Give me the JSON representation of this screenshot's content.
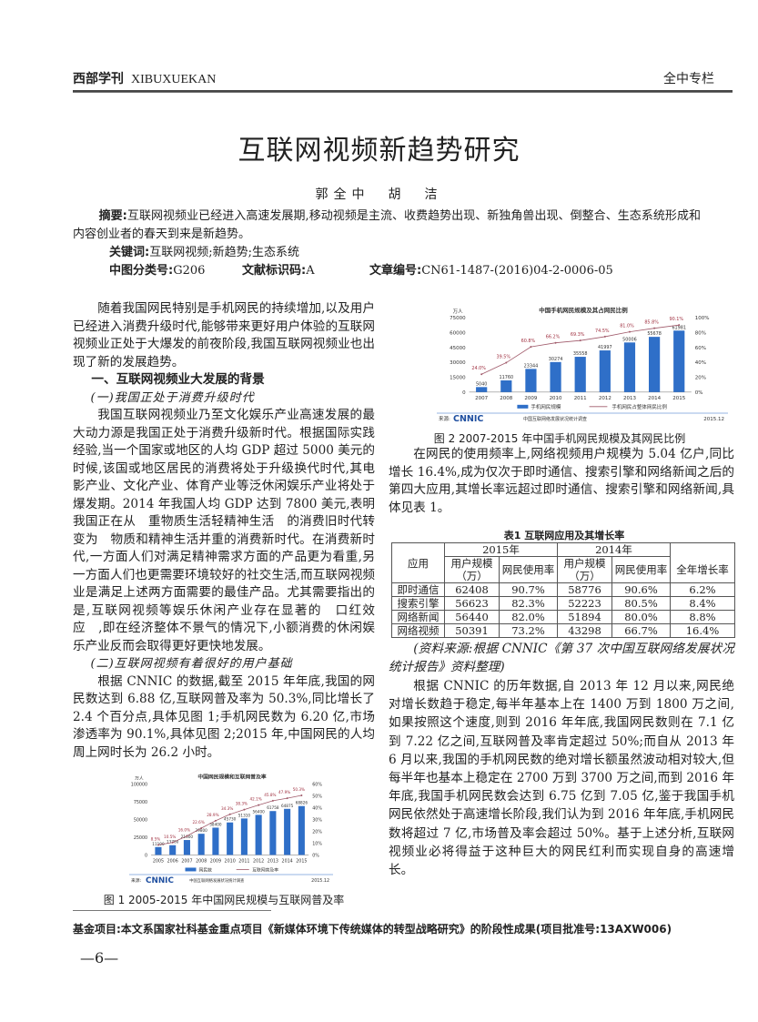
{
  "header": {
    "journal": "西部学刊",
    "journal_en": "XIBUXUEKAN",
    "column": "全中专栏"
  },
  "title": "互联网视频新趋势研究",
  "authors": "郭全中　胡　洁",
  "abstract": {
    "label": "摘要:",
    "text": "互联网视频业已经进入高速发展期,移动视频是主流、收费趋势出现、新独角兽出现、倒整合、生态系统形成和内容创业者的春天到来是新趋势。"
  },
  "keywords": {
    "label": "关键词:",
    "text": "互联网视频;新趋势;生态系统"
  },
  "classification": {
    "label": "中图分类号:",
    "value": "G206",
    "doc_label": "文献标识码:",
    "doc_value": "A",
    "article_label": "文章编号:",
    "article_value": "CN61-1487-(2016)04-2-0006-05"
  },
  "left_column": {
    "p1": "随着我国网民特别是手机网民的持续增加,以及用户已经进入消费升级时代,能够带来更好用户体验的互联网视频业正处于大爆发的前夜阶段,我国互联网视频业也出现了新的发展趋势。",
    "h1": "一、互联网视频业大发展的背景",
    "h1_1": "(一)我国正处于消费升级时代",
    "p2": "我国互联网视频业乃至文化娱乐产业高速发展的最大动力源是我国正处于消费升级新时代。根据国际实践经验,当一个国家或地区的人均 GDP 超过 5000 美元的时候,该国或地区居民的消费将处于升级换代时代,其电影产业、文化产业、体育产业等泛休闲娱乐产业将处于爆发期。2014 年我国人均 GDP 达到 7800 美元,表明我国正在从　重物质生活轻精神生活　的消费旧时代转变为　物质和精神生活并重的消费新时代。在消费新时代,一方面人们对满足精神需求方面的产品更为看重,另一方面人们也更需要环境较好的社交生活,而互联网视频业是满足上述两方面需要的最佳产品。尤其需要指出的是,互联网视频等娱乐休闲产业存在显著的　口红效应　,即在经济整体不景气的情况下,小额消费的休闲娱乐产业反而会取得更好更快地发展。",
    "h1_2": "(二)互联网视频有着很好的用户基础",
    "p3": "根据 CNNIC 的数据,截至 2015 年年底,我国的网民数达到 6.88 亿,互联网普及率为 50.3%,同比增长了 2.4 个百分点,具体见图 1;手机网民数为 6.20 亿,市场渗透率为 90.1%,具体见图 2;2015 年,中国网民的人均周上网时长为 26.2 小时。",
    "fig1_caption": "图 1  2005-2015 年中国网民规模与互联网普及率"
  },
  "right_column": {
    "fig2_caption": "图 2  2007-2015 年中国手机网民规模及其网民比例",
    "p1": "在网民的使用频率上,网络视频用户规模为 5.04 亿户,同比增长 16.4%,成为仅次于即时通信、搜索引擎和网络新闻之后的第四大应用,其增长率远超过即时通信、搜索引擎和网络新闻,具体见表 1。",
    "table": {
      "title": "表1  互联网应用及其增长率",
      "year_headers": [
        "2015年",
        "2014年"
      ],
      "col_headers": [
        "应用",
        "用户规模（万）",
        "网民使用率",
        "用户规模（万）",
        "网民使用率",
        "全年增长率"
      ],
      "rows": [
        [
          "即时通信",
          "62408",
          "90.7%",
          "58776",
          "90.6%",
          "6.2%"
        ],
        [
          "搜索引擎",
          "56623",
          "82.3%",
          "52223",
          "80.5%",
          "8.4%"
        ],
        [
          "网络新闻",
          "56440",
          "82.0%",
          "51894",
          "80.0%",
          "8.8%"
        ],
        [
          "网络视频",
          "50391",
          "73.2%",
          "43298",
          "66.7%",
          "16.4%"
        ]
      ],
      "source": "(资料来源:根据 CNNIC《第 37 次中国互联网络发展状况统计报告》资料整理)"
    },
    "p2": "根据 CNNIC 的历年数据,自 2013 年 12 月以来,网民绝对增长数趋于稳定,每半年基本上在 1400 万到 1800 万之间,如果按照这个速度,则到 2016 年年底,我国网民数则在 7.1 亿到 7.22 亿之间,互联网普及率肯定超过 50%;而自从 2013 年 6 月以来,我国的手机网民数的绝对增长额虽然波动相对较大,但每半年也基本上稳定在 2700 万到 3700 万之间,而到 2016 年年底,我国手机网民数会达到 6.75 亿到 7.05 亿,鉴于我国手机网民依然处于高速增长阶段,我们认为到 2016 年年底,手机网民数将超过 7 亿,市场普及率会超过 50%。基于上述分析,互联网视频业必将得益于这种巨大的网民红利而实现自身的高速增长。"
  },
  "footer": {
    "fund": "基金项目:本文系国家社科基金重点项目《新媒体环境下传统媒体的转型战略研究》的阶段性成果(项目批准号:13AXW006)",
    "page": "—6—"
  },
  "chart_data": [
    {
      "type": "bar+line",
      "title": "中国网民规模和互联网普及率",
      "ylabel": "万人",
      "categories": [
        "2005",
        "2006",
        "2007",
        "2008",
        "2009",
        "2010",
        "2011",
        "2012",
        "2013",
        "2014",
        "2015"
      ],
      "series": [
        {
          "name": "网民数",
          "type": "bar",
          "axis": "left",
          "values": [
            11100,
            13700,
            21000,
            29800,
            38400,
            45730,
            51310,
            56400,
            61758,
            64875,
            68826
          ]
        },
        {
          "name": "互联网普及率",
          "type": "line",
          "axis": "right",
          "values": [
            8.5,
            10.5,
            16.0,
            22.6,
            28.9,
            34.3,
            38.3,
            42.1,
            45.8,
            47.9,
            50.3
          ]
        }
      ],
      "ylim_left": [
        0,
        100000
      ],
      "yticks_left": [
        "0",
        "25000",
        "50000",
        "75000",
        "100000"
      ],
      "ylim_right": [
        0,
        60
      ],
      "yticks_right": [
        "0%",
        "10%",
        "20%",
        "30%",
        "40%",
        "50%",
        "60%"
      ],
      "source_label": "来源:",
      "source_logo": "CNNIC",
      "source_text": "中国互联网络发展状况统计调查",
      "date": "2015.12",
      "legend": "bottom",
      "bar_color": "#2f6fc8",
      "line_color": "#a05a6a"
    },
    {
      "type": "bar+line",
      "title": "中国手机网民规模及其占网民比例",
      "ylabel": "万人",
      "categories": [
        "2007",
        "2008",
        "2009",
        "2010",
        "2011",
        "2012",
        "2013",
        "2014",
        "2015"
      ],
      "series": [
        {
          "name": "手机网民规模",
          "type": "bar",
          "axis": "left",
          "values": [
            5040,
            11760,
            23344,
            30274,
            35558,
            41997,
            50006,
            55678,
            61981
          ]
        },
        {
          "name": "手机网民占整体网民比例",
          "type": "line",
          "axis": "right",
          "values": [
            24.0,
            39.5,
            60.8,
            66.2,
            69.3,
            74.5,
            81.0,
            85.8,
            90.1
          ]
        }
      ],
      "ylim_left": [
        0,
        75000
      ],
      "yticks_left": [
        "0",
        "15000",
        "30000",
        "45000",
        "60000",
        "75000"
      ],
      "ylim_right": [
        0,
        100
      ],
      "yticks_right": [
        "0%",
        "20%",
        "40%",
        "60%",
        "80%",
        "100%"
      ],
      "source_label": "来源:",
      "source_logo": "CNNIC",
      "source_text": "中国互联网络发展状况统计调查",
      "date": "2015.12",
      "legend": "bottom",
      "bar_color": "#2f6fc8",
      "line_color": "#a05a6a"
    }
  ]
}
